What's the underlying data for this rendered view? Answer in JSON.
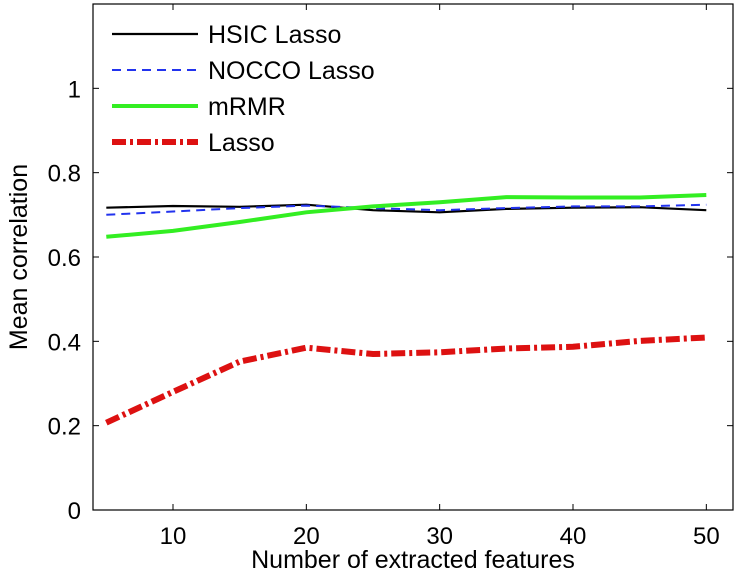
{
  "chart_data": {
    "type": "line",
    "title": "",
    "xlabel": "Number of extracted features",
    "ylabel": "Mean correlation",
    "xlim": [
      4,
      52
    ],
    "ylim": [
      0,
      1.2
    ],
    "xticks": [
      10,
      20,
      30,
      40,
      50
    ],
    "yticks": [
      0,
      0.2,
      0.4,
      0.6,
      0.8,
      1
    ],
    "xtick_labels": [
      "10",
      "20",
      "30",
      "40",
      "50"
    ],
    "ytick_labels": [
      "0",
      "0.2",
      "0.4",
      "0.6",
      "0.8",
      "1"
    ],
    "grid": false,
    "legend_position": "top-left",
    "series": [
      {
        "name": "HSIC Lasso",
        "color": "#000000",
        "style": "solid",
        "x": [
          5,
          10,
          15,
          20,
          25,
          30,
          35,
          40,
          45,
          50
        ],
        "y": [
          0.717,
          0.721,
          0.719,
          0.724,
          0.711,
          0.706,
          0.714,
          0.717,
          0.718,
          0.711
        ]
      },
      {
        "name": "NOCCO Lasso",
        "color": "#2233ee",
        "style": "dashed",
        "x": [
          5,
          10,
          15,
          20,
          25,
          30,
          35,
          40,
          45,
          50
        ],
        "y": [
          0.7,
          0.708,
          0.716,
          0.722,
          0.716,
          0.711,
          0.716,
          0.72,
          0.72,
          0.724
        ]
      },
      {
        "name": "mRMR",
        "color": "#33ee22",
        "style": "solid",
        "x": [
          5,
          10,
          15,
          20,
          25,
          30,
          35,
          40,
          45,
          50
        ],
        "y": [
          0.648,
          0.662,
          0.683,
          0.706,
          0.72,
          0.73,
          0.742,
          0.741,
          0.741,
          0.747
        ]
      },
      {
        "name": "Lasso",
        "color": "#dd1111",
        "style": "dash-dot",
        "x": [
          5,
          10,
          15,
          20,
          25,
          30,
          35,
          40,
          45,
          50
        ],
        "y": [
          0.207,
          0.28,
          0.352,
          0.385,
          0.37,
          0.374,
          0.383,
          0.387,
          0.401,
          0.409
        ]
      }
    ]
  }
}
